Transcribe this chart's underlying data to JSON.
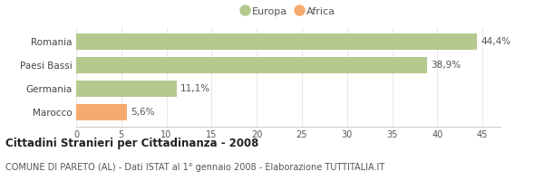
{
  "categories": [
    "Romania",
    "Paesi Bassi",
    "Germania",
    "Marocco"
  ],
  "values": [
    44.4,
    38.9,
    11.1,
    5.6
  ],
  "labels": [
    "44,4%",
    "38,9%",
    "11,1%",
    "5,6%"
  ],
  "colors": [
    "#b5c98e",
    "#b5c98e",
    "#b5c98e",
    "#f5aa6e"
  ],
  "legend_items": [
    {
      "label": "Europa",
      "color": "#b5c98e"
    },
    {
      "label": "Africa",
      "color": "#f5aa6e"
    }
  ],
  "xlim": [
    0,
    47
  ],
  "xticks": [
    0,
    5,
    10,
    15,
    20,
    25,
    30,
    35,
    40,
    45
  ],
  "title": "Cittadini Stranieri per Cittadinanza - 2008",
  "subtitle": "COMUNE DI PARETO (AL) - Dati ISTAT al 1° gennaio 2008 - Elaborazione TUTTITALIA.IT",
  "background_color": "#ffffff",
  "bar_height": 0.68,
  "label_fontsize": 7.5,
  "title_fontsize": 8.5,
  "subtitle_fontsize": 7.0,
  "tick_fontsize": 7.0,
  "ylabel_fontsize": 7.5
}
